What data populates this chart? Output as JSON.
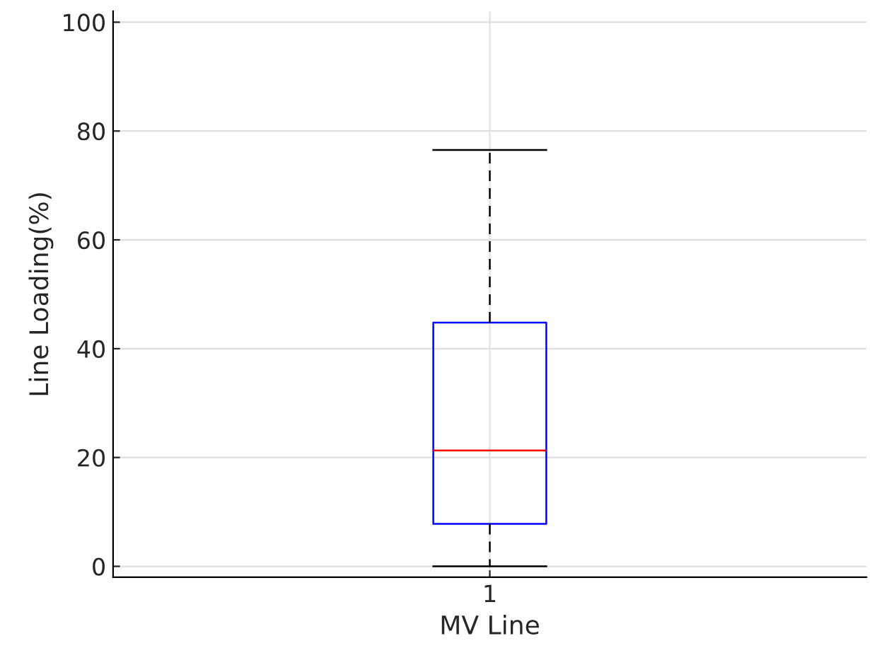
{
  "chart_data": {
    "type": "box",
    "xlabel": "MV Line",
    "ylabel": "Line Loading(%)",
    "categories": [
      "1"
    ],
    "series": [
      {
        "color": "#0000ff",
        "boxes": [
          {
            "low": 0,
            "q1": 7.8,
            "median": 21.3,
            "q3": 44.8,
            "high": 76.5
          }
        ]
      }
    ],
    "ylim": [
      -2,
      102
    ],
    "yticks": [
      0,
      20,
      40,
      60,
      80,
      100
    ],
    "grid": true
  }
}
